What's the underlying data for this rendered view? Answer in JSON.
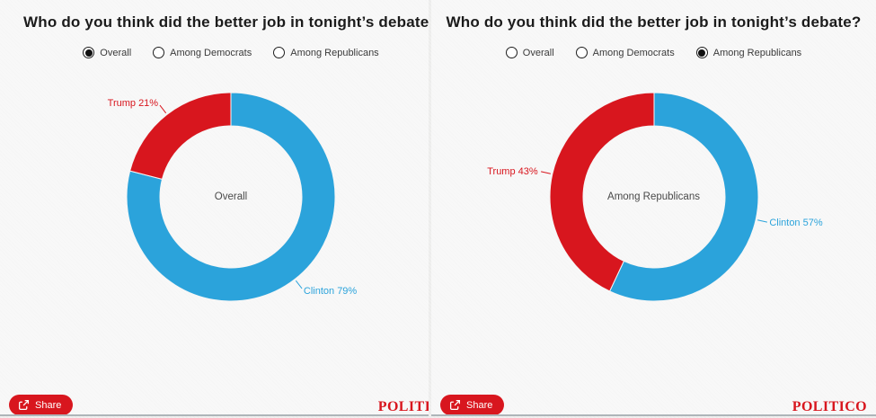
{
  "footer": {
    "share_label": "Share",
    "logo_text": "POLITICO"
  },
  "chart_data": [
    {
      "type": "donut",
      "title": "Who do you think did the better job in tonight’s debate?",
      "filter_options": [
        "Overall",
        "Among Democrats",
        "Among Republicans"
      ],
      "selected_filter": "Overall",
      "center_label": "Overall",
      "categories": [
        "Clinton",
        "Trump"
      ],
      "values": [
        79,
        21
      ],
      "labels": [
        "Clinton 79%",
        "Trump 21%"
      ],
      "colors": [
        "#2ba3db",
        "#d8161e"
      ],
      "start_angle": "top",
      "direction": "clockwise"
    },
    {
      "type": "donut",
      "title": "Who do you think did the better job in tonight’s debate?",
      "filter_options": [
        "Overall",
        "Among Democrats",
        "Among Republicans"
      ],
      "selected_filter": "Among Republicans",
      "center_label": "Among Republicans",
      "categories": [
        "Clinton",
        "Trump"
      ],
      "values": [
        57,
        43
      ],
      "labels": [
        "Clinton 57%",
        "Trump 43%"
      ],
      "colors": [
        "#2ba3db",
        "#d8161e"
      ],
      "start_angle": "top",
      "direction": "clockwise"
    }
  ]
}
